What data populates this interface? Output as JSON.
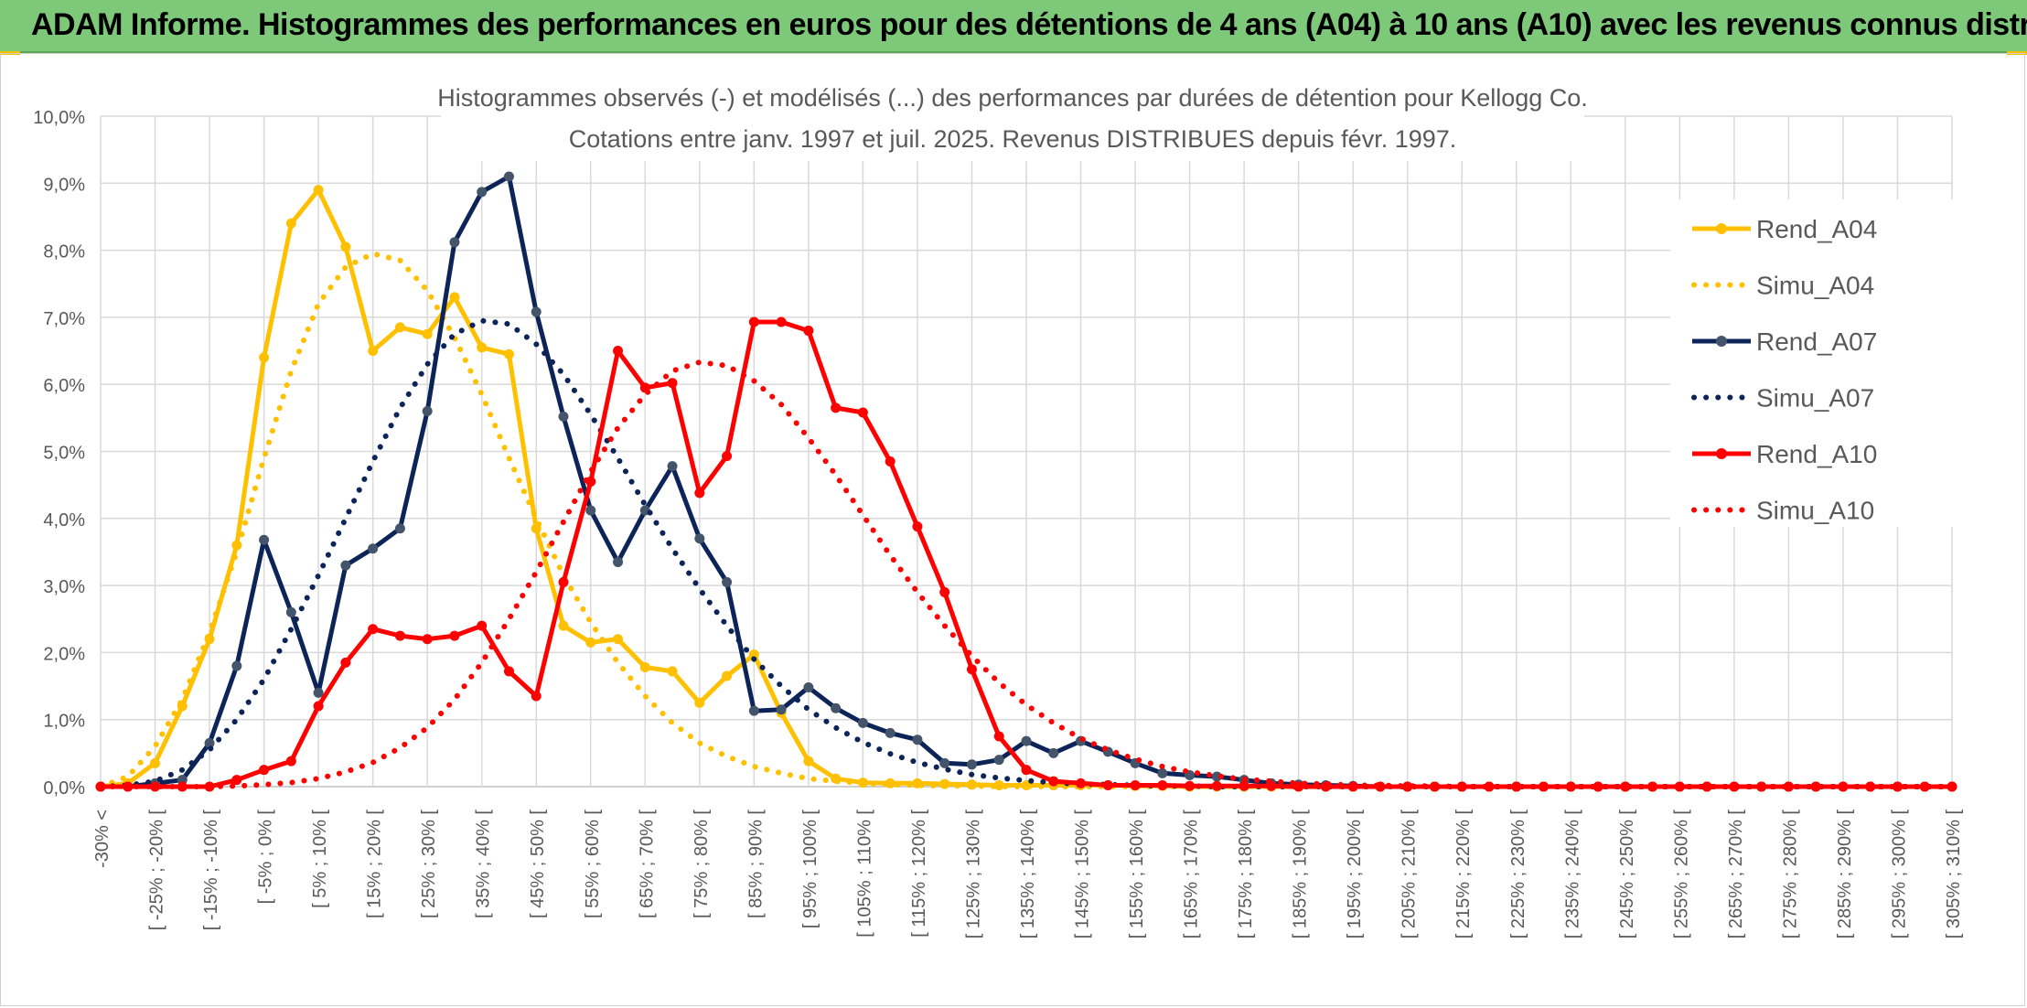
{
  "header": {
    "title": "ADAM Informe. Histogrammes des performances en euros pour des détentions de 4 ans (A04) à 10 ans (A10) avec les revenus connus distribués"
  },
  "chart_data": {
    "type": "line",
    "title": "Histogrammes observés (-) et modélisés (...) des performances par durées de détention pour Kellogg Co.",
    "subtitle": "Cotations entre janv. 1997 et juil. 2025. Revenus DISTRIBUES depuis févr. 1997.",
    "xlabel": "",
    "ylabel": "",
    "ylim": [
      0,
      10
    ],
    "y_ticks": [
      "0,0%",
      "1,0%",
      "2,0%",
      "3,0%",
      "4,0%",
      "5,0%",
      "6,0%",
      "7,0%",
      "8,0%",
      "9,0%",
      "10,0%"
    ],
    "x_tick_labels": [
      "-30% <",
      "[ -25% ; -20% [",
      "[ -15% ; -10% [",
      "[ -5% ; 0% [",
      "[ 5% ; 10% [",
      "[ 15% ; 20% [",
      "[ 25% ; 30% [",
      "[ 35% ; 40% [",
      "[ 45% ; 50% [",
      "[ 55% ; 60% [",
      "[ 65% ; 70% [",
      "[ 75% ; 80% [",
      "[ 85% ; 90% [",
      "[ 95% ; 100% [",
      "[ 105% ; 110% [",
      "[ 115% ; 120% [",
      "[ 125% ; 130% [",
      "[ 135% ; 140% [",
      "[ 145% ; 150% [",
      "[ 155% ; 160% [",
      "[ 165% ; 170% [",
      "[ 175% ; 180% [",
      "[ 185% ; 190% [",
      "[ 195% ; 200% [",
      "[ 205% ; 210% [",
      "[ 215% ; 220% [",
      "[ 225% ; 230% [",
      "[ 235% ; 240% [",
      "[ 245% ; 250% [",
      "[ 255% ; 260% [",
      "[ 265% ; 270% [",
      "[ 275% ; 280% [",
      "[ 285% ; 290% [",
      "[ 295% ; 300% [",
      "[ 305% ; 310% ["
    ],
    "n_bins": 69,
    "grid": true,
    "legend_position": "right",
    "series": [
      {
        "name": "Rend_A04",
        "style": "solid",
        "color": "#ffc000",
        "values": [
          0,
          0.05,
          0.35,
          1.2,
          2.2,
          3.6,
          6.4,
          8.4,
          8.9,
          8.05,
          6.5,
          6.85,
          6.75,
          7.3,
          6.55,
          6.45,
          3.85,
          2.4,
          2.15,
          2.2,
          1.78,
          1.72,
          1.25,
          1.65,
          1.97,
          1.1,
          0.38,
          0.12,
          0.06,
          0.05,
          0.05,
          0.04,
          0.03,
          0.02,
          0.02,
          0.02,
          0.02,
          0.02,
          0.01,
          0.01,
          0,
          0,
          0,
          0,
          0,
          0,
          0,
          0,
          0,
          0,
          0,
          0,
          0,
          0,
          0,
          0,
          0,
          0,
          0,
          0,
          0,
          0,
          0,
          0,
          0,
          0,
          0,
          0,
          0
        ]
      },
      {
        "name": "Simu_A04",
        "style": "dotted",
        "color": "#ffc000",
        "values": [
          0,
          0.15,
          0.6,
          1.3,
          2.3,
          3.5,
          4.9,
          6.2,
          7.2,
          7.75,
          7.95,
          7.85,
          7.4,
          6.7,
          5.85,
          4.9,
          4.0,
          3.15,
          2.45,
          1.85,
          1.35,
          0.95,
          0.65,
          0.45,
          0.3,
          0.2,
          0.12,
          0.08,
          0.05,
          0.03,
          0.02,
          0.01,
          0.01,
          0,
          0,
          0,
          0,
          0,
          0,
          0,
          0,
          0,
          0,
          0,
          0,
          0,
          0,
          0,
          0,
          0,
          0,
          0,
          0,
          0,
          0,
          0,
          0,
          0,
          0,
          0,
          0,
          0,
          0,
          0,
          0,
          0,
          0,
          0,
          0
        ]
      },
      {
        "name": "Rend_A07",
        "style": "solid",
        "color": "#0d2458",
        "values": [
          0,
          0,
          0.05,
          0.1,
          0.65,
          1.8,
          3.68,
          2.6,
          1.4,
          3.3,
          3.55,
          3.85,
          5.6,
          8.12,
          8.87,
          9.1,
          7.08,
          5.52,
          4.12,
          3.35,
          4.12,
          4.78,
          3.7,
          3.05,
          1.13,
          1.15,
          1.48,
          1.17,
          0.95,
          0.8,
          0.7,
          0.35,
          0.33,
          0.4,
          0.68,
          0.5,
          0.68,
          0.52,
          0.35,
          0.2,
          0.17,
          0.15,
          0.1,
          0.05,
          0.03,
          0.02,
          0.01,
          0,
          0,
          0,
          0,
          0,
          0,
          0,
          0,
          0,
          0,
          0,
          0,
          0,
          0,
          0,
          0,
          0,
          0,
          0,
          0,
          0,
          0
        ]
      },
      {
        "name": "Simu_A07",
        "style": "dotted",
        "color": "#0d2458",
        "values": [
          0,
          0.02,
          0.08,
          0.25,
          0.55,
          1.0,
          1.6,
          2.35,
          3.15,
          4.0,
          4.85,
          5.65,
          6.3,
          6.75,
          6.95,
          6.9,
          6.6,
          6.15,
          5.55,
          4.9,
          4.2,
          3.55,
          2.95,
          2.4,
          1.9,
          1.5,
          1.15,
          0.88,
          0.66,
          0.49,
          0.36,
          0.26,
          0.18,
          0.13,
          0.09,
          0.06,
          0.04,
          0.03,
          0.02,
          0.01,
          0.01,
          0,
          0,
          0,
          0,
          0,
          0,
          0,
          0,
          0,
          0,
          0,
          0,
          0,
          0,
          0,
          0,
          0,
          0,
          0,
          0,
          0,
          0,
          0,
          0,
          0,
          0,
          0,
          0
        ]
      },
      {
        "name": "Rend_A10",
        "style": "solid",
        "color": "#ff0000",
        "values": [
          0,
          0,
          0,
          0,
          0,
          0.1,
          0.25,
          0.38,
          1.2,
          1.85,
          2.35,
          2.25,
          2.2,
          2.25,
          2.4,
          1.72,
          1.35,
          3.05,
          4.55,
          6.5,
          5.95,
          6.02,
          4.38,
          4.93,
          6.93,
          6.93,
          6.8,
          5.65,
          5.58,
          4.85,
          3.88,
          2.9,
          1.75,
          0.75,
          0.25,
          0.08,
          0.05,
          0.02,
          0.02,
          0.02,
          0.01,
          0.01,
          0.01,
          0.01,
          0,
          0,
          0,
          0,
          0,
          0,
          0,
          0,
          0,
          0,
          0,
          0,
          0,
          0,
          0,
          0,
          0,
          0,
          0,
          0,
          0,
          0,
          0,
          0,
          0
        ]
      },
      {
        "name": "Simu_A10",
        "style": "dotted",
        "color": "#ff0000",
        "values": [
          0,
          0,
          0,
          0,
          0,
          0.01,
          0.03,
          0.06,
          0.12,
          0.22,
          0.36,
          0.58,
          0.88,
          1.3,
          1.85,
          2.5,
          3.2,
          3.95,
          4.7,
          5.35,
          5.85,
          6.2,
          6.33,
          6.28,
          6.05,
          5.7,
          5.2,
          4.65,
          4.05,
          3.45,
          2.9,
          2.4,
          1.95,
          1.55,
          1.22,
          0.95,
          0.72,
          0.55,
          0.41,
          0.3,
          0.22,
          0.16,
          0.11,
          0.08,
          0.05,
          0.04,
          0.02,
          0.02,
          0.01,
          0.01,
          0,
          0,
          0,
          0,
          0,
          0,
          0,
          0,
          0,
          0,
          0,
          0,
          0,
          0,
          0,
          0,
          0,
          0,
          0
        ]
      }
    ]
  }
}
